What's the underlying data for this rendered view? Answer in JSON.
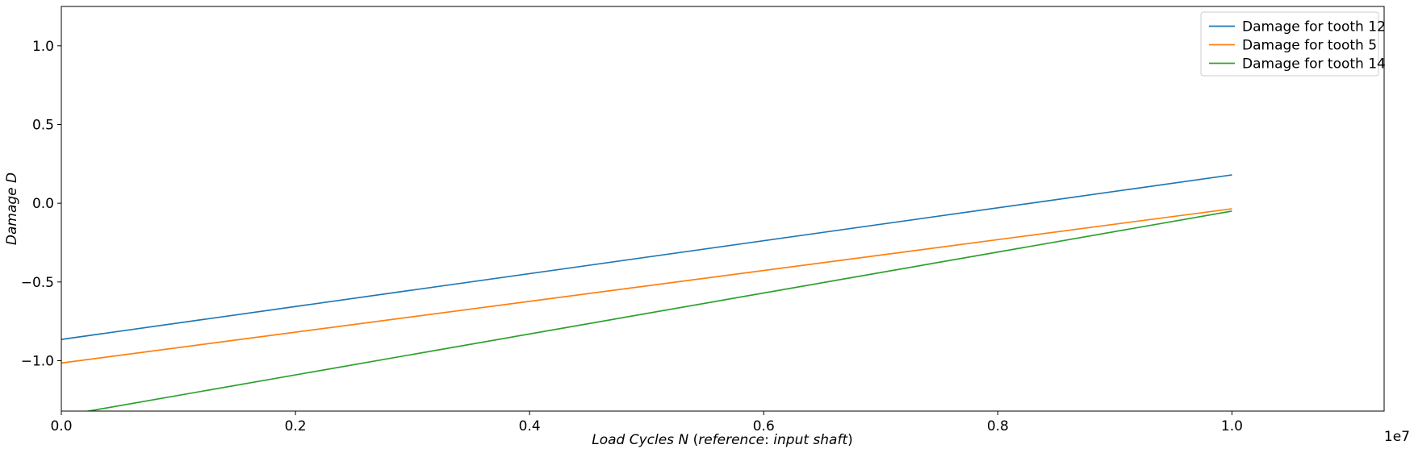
{
  "chart_data": {
    "type": "line",
    "xlabel_parts": [
      "Load Cycles ",
      "N",
      " (",
      "reference",
      ":  ",
      "input shaft",
      ")"
    ],
    "ylabel": "Damage D",
    "x_offset_label": "1e7",
    "xlim": [
      0,
      1.13
    ],
    "ylim": [
      -1.32,
      1.25
    ],
    "x_ticks": [
      0.0,
      0.2,
      0.4,
      0.6,
      0.8,
      1.0
    ],
    "x_tick_labels": [
      "0.0",
      "0.2",
      "0.4",
      "0.6",
      "0.8",
      "1.0"
    ],
    "y_ticks": [
      1.0,
      0.5,
      0.0,
      -0.5,
      -1.0
    ],
    "y_tick_labels": [
      "1.0",
      "0.5",
      "0.0",
      "−0.5",
      "−1.0"
    ],
    "grid": false,
    "legend_position": "top-right",
    "series": [
      {
        "name": "Damage for tooth 12",
        "color": "#1f77b4",
        "x": [
          0.0,
          1.0
        ],
        "y": [
          -0.865,
          0.18
        ]
      },
      {
        "name": "Damage for tooth 5",
        "color": "#ff7f0e",
        "x": [
          0.0,
          1.0
        ],
        "y": [
          -1.015,
          -0.035
        ]
      },
      {
        "name": "Damage for tooth 14",
        "color": "#2ca02c",
        "x": [
          0.0,
          1.0
        ],
        "y": [
          -1.35,
          -0.05
        ]
      }
    ]
  }
}
